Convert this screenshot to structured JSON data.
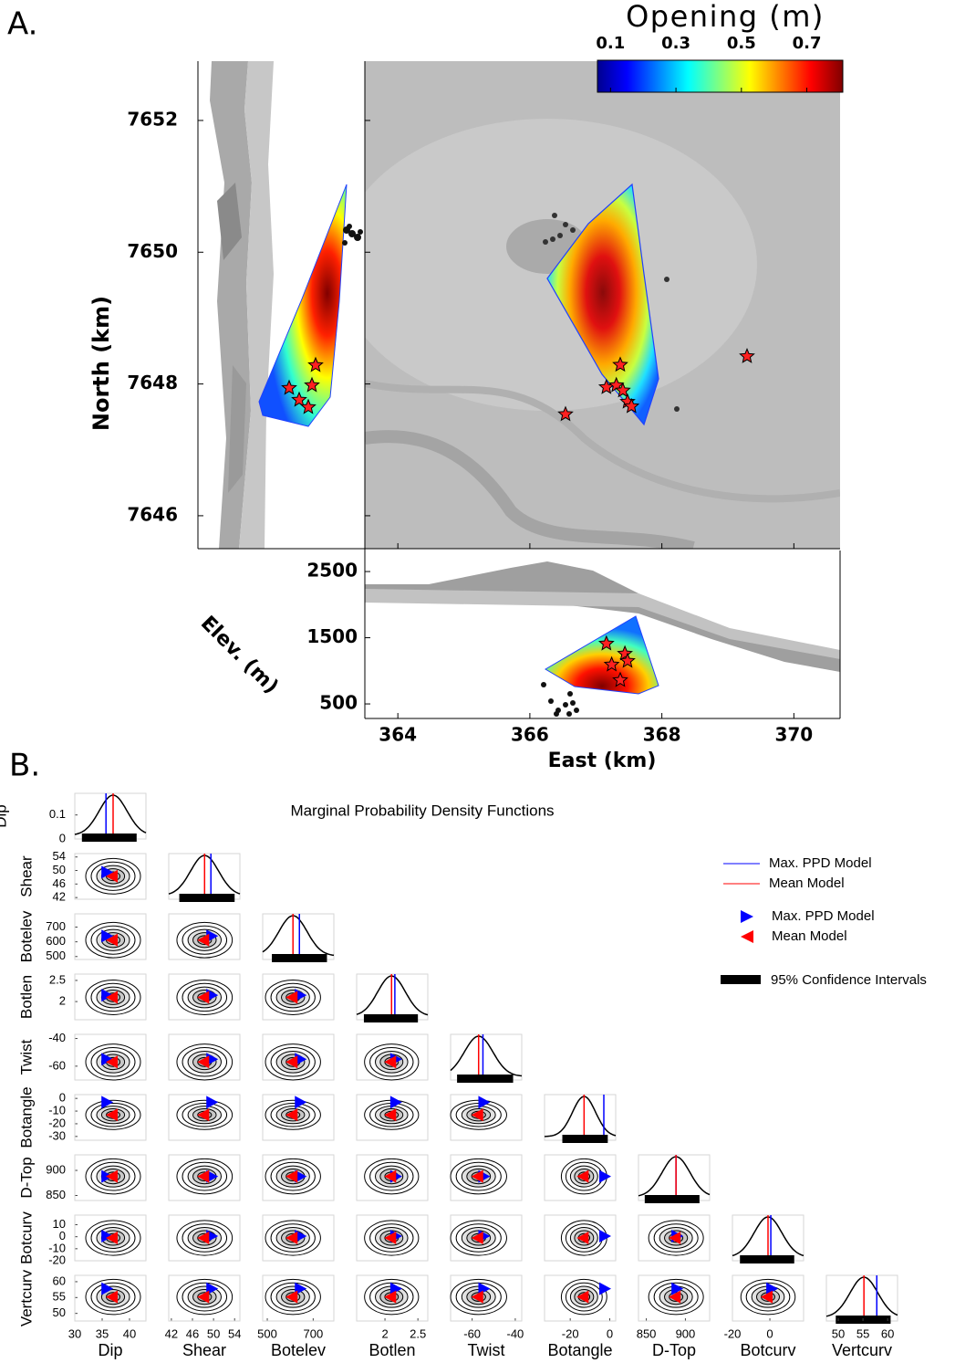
{
  "panel_a": {
    "label": "A.",
    "colorbar": {
      "title": "Opening (m)",
      "lim": [
        0.06,
        0.81
      ],
      "ticks": [
        0.1,
        0.3,
        0.5,
        0.7
      ]
    },
    "north_axis": {
      "label": "North (km)",
      "lim": [
        7645.5,
        7652.9
      ],
      "ticks": [
        7646,
        7648,
        7650,
        7652
      ]
    },
    "east_axis": {
      "label": "East (km)",
      "lim": [
        363.5,
        370.7
      ],
      "ticks": [
        364,
        366,
        368,
        370
      ]
    },
    "elev_axis": {
      "label": "Elev. (m)",
      "lim": [
        280,
        2818
      ],
      "ticks": [
        500,
        1500,
        2500
      ]
    },
    "map_events": {
      "east": [
        367.37,
        367.16,
        367.31,
        367.41,
        367.48,
        367.54,
        366.54,
        369.29
      ],
      "north": [
        7648.29,
        7647.95,
        7647.98,
        7647.9,
        7647.73,
        7647.66,
        7647.54,
        7648.42
      ]
    },
    "section_events": {
      "east": [
        367.16,
        367.44,
        367.48,
        367.24,
        367.37
      ],
      "elev": [
        1411,
        1259,
        1149,
        1094,
        859
      ]
    }
  },
  "panel_b": {
    "label": "B.",
    "title": "Marginal Probability Density Functions",
    "density_lim": [
      0,
      0.19
    ],
    "density_ticks": [
      0,
      0.1
    ],
    "colors": {
      "max": "#0000ff",
      "mean": "#ff0000",
      "ci": "#000000"
    },
    "legend": {
      "max_line": "Max. PPD Model",
      "mean_line": "Mean Model",
      "max_marker": "Max. PPD Model",
      "mean_marker": "Mean Model",
      "ci": "95% Confidence Intervals"
    },
    "variables": [
      {
        "name": "Dip",
        "lim": [
          30,
          43
        ],
        "xticks": [
          30,
          35,
          40
        ],
        "max_ppd": 35.7,
        "mean": 37,
        "ci": [
          31.3,
          41.3
        ]
      },
      {
        "name": "Shear",
        "lim": [
          41.5,
          55
        ],
        "xticks": [
          42,
          46,
          50,
          54
        ],
        "yticks": [
          42,
          46,
          50,
          54
        ],
        "max_ppd": 49.5,
        "mean": 48.3,
        "ci": [
          43.5,
          54
        ]
      },
      {
        "name": "Botelev",
        "lim": [
          480,
          790
        ],
        "xticks": [
          500,
          700
        ],
        "yticks": [
          500,
          600,
          700
        ],
        "max_ppd": 640,
        "mean": 612,
        "ci": [
          520,
          760
        ]
      },
      {
        "name": "Botlen",
        "lim": [
          1.57,
          2.65
        ],
        "xticks": [
          2,
          2.5
        ],
        "yticks": [
          2,
          2.5
        ],
        "max_ppd": 2.15,
        "mean": 2.1,
        "ci": [
          1.68,
          2.5
        ]
      },
      {
        "name": "Twist",
        "lim": [
          -70,
          -37
        ],
        "xticks": [
          -60,
          -40
        ],
        "yticks": [
          -60,
          -40
        ],
        "max_ppd": -55,
        "mean": -57,
        "ci": [
          -67,
          -41
        ]
      },
      {
        "name": "Botangle",
        "lim": [
          -33,
          3
        ],
        "xticks": [
          -20,
          0
        ],
        "yticks": [
          -30,
          -20,
          -10,
          0
        ],
        "max_ppd": -3,
        "mean": -13,
        "ci": [
          -24,
          -1
        ]
      },
      {
        "name": "D-Top",
        "lim": [
          840,
          931
        ],
        "xticks": [
          850,
          900
        ],
        "yticks": [
          850,
          900
        ],
        "max_ppd": 888,
        "mean": 888,
        "ci": [
          848,
          918
        ]
      },
      {
        "name": "Botcurv",
        "lim": [
          -20,
          18
        ],
        "xticks": [
          -20,
          0
        ],
        "yticks": [
          -20,
          -10,
          0,
          10
        ],
        "max_ppd": 0.5,
        "mean": -1,
        "ci": [
          -16,
          13
        ]
      },
      {
        "name": "Vertcurv",
        "lim": [
          47.6,
          62
        ],
        "xticks": [
          50,
          55,
          60
        ],
        "yticks": [
          50,
          55,
          60
        ],
        "max_ppd": 57.8,
        "mean": 55.2,
        "ci": [
          49.5,
          60.6
        ]
      }
    ]
  }
}
